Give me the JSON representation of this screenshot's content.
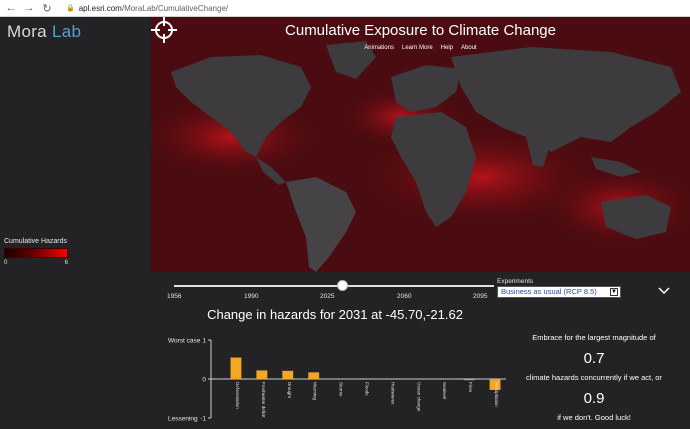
{
  "browser": {
    "url_host": "apl.esri.com",
    "url_path": "/MoraLab/CumulativeChange/"
  },
  "brand": {
    "name": "Mora",
    "suffix": "Lab"
  },
  "legend": {
    "title": "Cumulative Hazards",
    "min": "0",
    "max": "6"
  },
  "map": {
    "title": "Cumulative Exposure to Climate Change",
    "nav": [
      "Animations",
      "Learn More",
      "Help",
      "About"
    ]
  },
  "timeline": {
    "years": [
      "1956",
      "1990",
      "2025",
      "2060",
      "2095"
    ],
    "current": 2031
  },
  "experiment": {
    "label": "Experiments",
    "selected": "Business as usual (RCP 8.5)"
  },
  "change_title": "Change in hazards for 2031 at -45.70,-21.62",
  "chart_data": {
    "type": "bar",
    "categories": [
      "Deforestation",
      "Freshwater deficit",
      "Drought",
      "Warming",
      "Storms",
      "Floods",
      "Heatwaves",
      "Ocean change",
      "Sealevel",
      "Fires",
      "Precipitation"
    ],
    "values": [
      0.55,
      0.22,
      0.21,
      0.17,
      0.0,
      0.0,
      0.0,
      0.0,
      0.0,
      -0.03,
      -0.28
    ],
    "ylim": [
      -1,
      1
    ],
    "top_label": "Worst case",
    "bottom_label": "Lessening",
    "ticks": [
      "1",
      "0",
      "-1"
    ],
    "bar_color": "#f5a623"
  },
  "side": {
    "line1": "Embrace for the largest magnitude of",
    "value1": "0.7",
    "line2": "climate hazards concurrently if we act, or",
    "value2": "0.9",
    "line3": "if we don't. Good luck!"
  }
}
